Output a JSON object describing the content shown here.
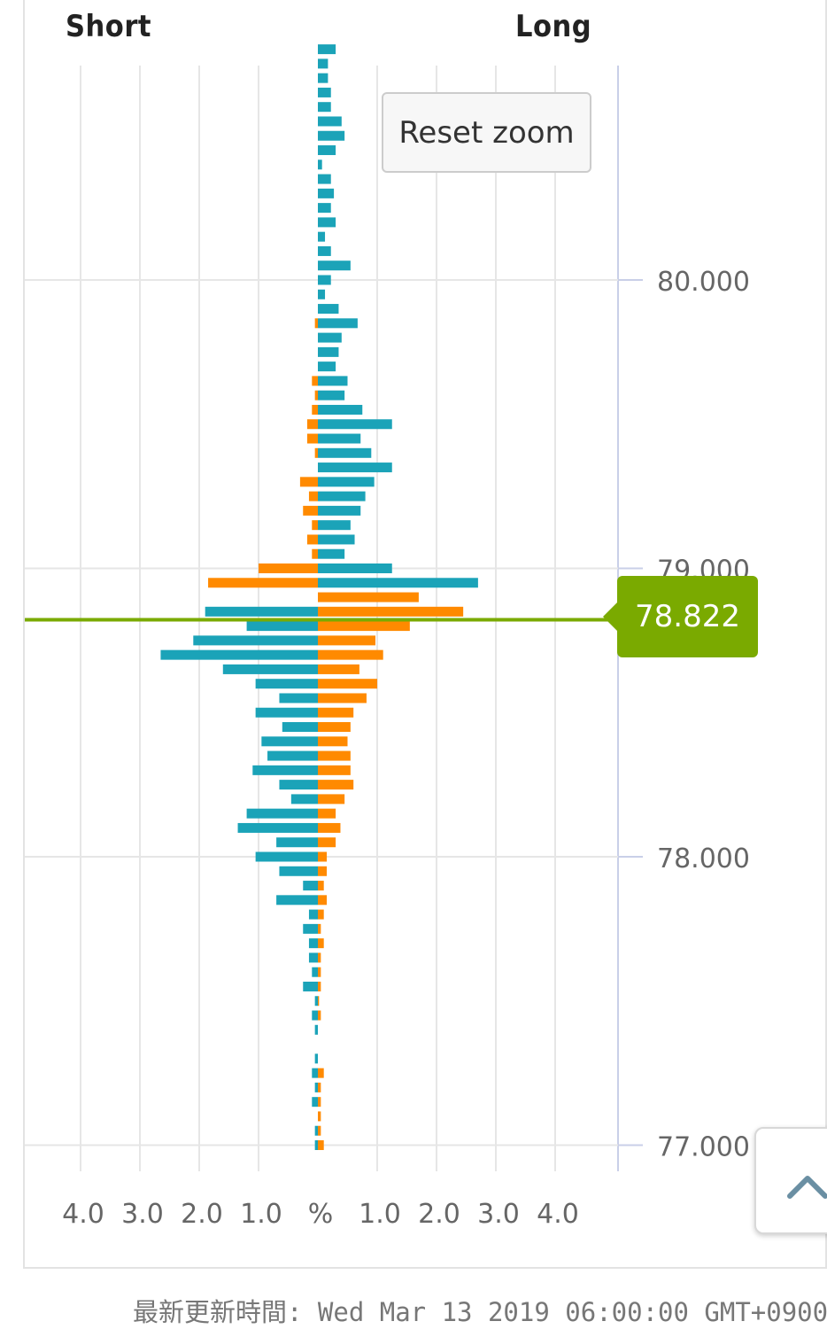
{
  "header": {
    "short_label": "Short",
    "long_label": "Long"
  },
  "controls": {
    "reset_zoom_label": "Reset zoom"
  },
  "current_price": {
    "value": 78.822,
    "label": "78.822"
  },
  "footer": {
    "updated_text": "最新更新時間: Wed Mar 13 2019 06:00:00 GMT+0900"
  },
  "colors": {
    "orders": "#1ba3b8",
    "positions": "#ff8a00",
    "current_price": "#7aaa00",
    "grid": "#e6e6e6",
    "price_axis": "#c9cfe8"
  },
  "icons": {
    "scroll_top": "chevron-up-icon"
  },
  "chart_data": {
    "type": "bar",
    "orientation": "horizontal-butterfly",
    "title": "",
    "xlabel": "%",
    "x_tick_labels": [
      "4.0",
      "3.0",
      "2.0",
      "1.0",
      "%",
      "1.0",
      "2.0",
      "3.0",
      "4.0"
    ],
    "xlim": [
      -4.0,
      4.0
    ],
    "y_tick_labels": [
      "80.000",
      "79.000",
      "78.000",
      "77.000"
    ],
    "ylim": [
      76.9,
      80.7
    ],
    "y_step": 0.05,
    "grid": true,
    "series": [
      {
        "color": "#1ba3b8",
        "short": [
          0,
          0,
          0,
          0,
          0,
          0,
          0,
          0,
          0,
          0,
          0,
          0,
          0,
          0,
          0,
          0,
          0,
          0,
          0,
          0,
          0,
          0,
          0,
          0,
          0,
          0,
          0,
          0,
          0,
          0,
          0,
          0,
          0,
          0,
          0,
          0,
          0,
          0,
          0,
          1.9,
          1.2,
          2.1,
          2.65,
          1.6,
          1.05,
          0.65,
          1.05,
          0.6,
          0.95,
          0.85,
          1.1,
          0.65,
          0.45,
          1.2,
          1.35,
          0.7,
          1.05,
          0.65,
          0.25,
          0.7,
          0.15,
          0.25,
          0.15,
          0.15,
          0.1,
          0.25,
          0.05,
          0.1,
          0.05,
          0,
          0.05,
          0.1,
          0.05,
          0.1,
          0,
          0.05,
          0.05
        ],
        "long": [
          0.3,
          0.17,
          0.17,
          0.22,
          0.22,
          0.4,
          0.45,
          0.3,
          0.07,
          0.22,
          0.27,
          0.22,
          0.3,
          0.12,
          0.22,
          0.55,
          0.22,
          0.12,
          0.35,
          0.67,
          0.4,
          0.35,
          0.3,
          0.5,
          0.45,
          0.75,
          1.25,
          0.72,
          0.9,
          1.25,
          0.95,
          0.8,
          0.72,
          0.55,
          0.62,
          0.45,
          1.25,
          2.7,
          0,
          0,
          0,
          0,
          0,
          0,
          0,
          0,
          0,
          0,
          0,
          0,
          0,
          0,
          0,
          0,
          0,
          0,
          0,
          0,
          0,
          0,
          0,
          0,
          0,
          0,
          0,
          0,
          0,
          0,
          0,
          0,
          0,
          0,
          0,
          0,
          0,
          0,
          0
        ]
      },
      {
        "color": "#ff8a00",
        "short": [
          0,
          0,
          0,
          0,
          0,
          0,
          0,
          0,
          0,
          0,
          0,
          0,
          0,
          0,
          0,
          0,
          0,
          0,
          0,
          0.05,
          0,
          0,
          0,
          0.1,
          0.05,
          0.1,
          0.18,
          0.18,
          0.05,
          0,
          0.3,
          0.15,
          0.25,
          0.1,
          0.18,
          0.1,
          1.0,
          1.85,
          0,
          0,
          0,
          0,
          0,
          0,
          0,
          0,
          0,
          0,
          0,
          0,
          0,
          0,
          0,
          0,
          0,
          0,
          0,
          0,
          0,
          0,
          0,
          0,
          0,
          0,
          0,
          0,
          0,
          0,
          0,
          0,
          0,
          0,
          0,
          0,
          0,
          0,
          0
        ],
        "long": [
          0,
          0,
          0,
          0,
          0,
          0,
          0,
          0,
          0,
          0,
          0,
          0,
          0,
          0,
          0,
          0,
          0,
          0,
          0,
          0,
          0,
          0,
          0,
          0,
          0,
          0,
          0,
          0,
          0,
          0,
          0,
          0,
          0,
          0,
          0,
          0,
          0,
          0,
          1.7,
          2.45,
          1.55,
          0.97,
          1.1,
          0.7,
          1.0,
          0.82,
          0.6,
          0.55,
          0.5,
          0.55,
          0.55,
          0.6,
          0.45,
          0.3,
          0.38,
          0.3,
          0.15,
          0.15,
          0.1,
          0.15,
          0.1,
          0.05,
          0.1,
          0.05,
          0.05,
          0.05,
          0.02,
          0.05,
          0,
          0,
          0,
          0.1,
          0.05,
          0.05,
          0.05,
          0.05,
          0.1
        ]
      }
    ]
  }
}
